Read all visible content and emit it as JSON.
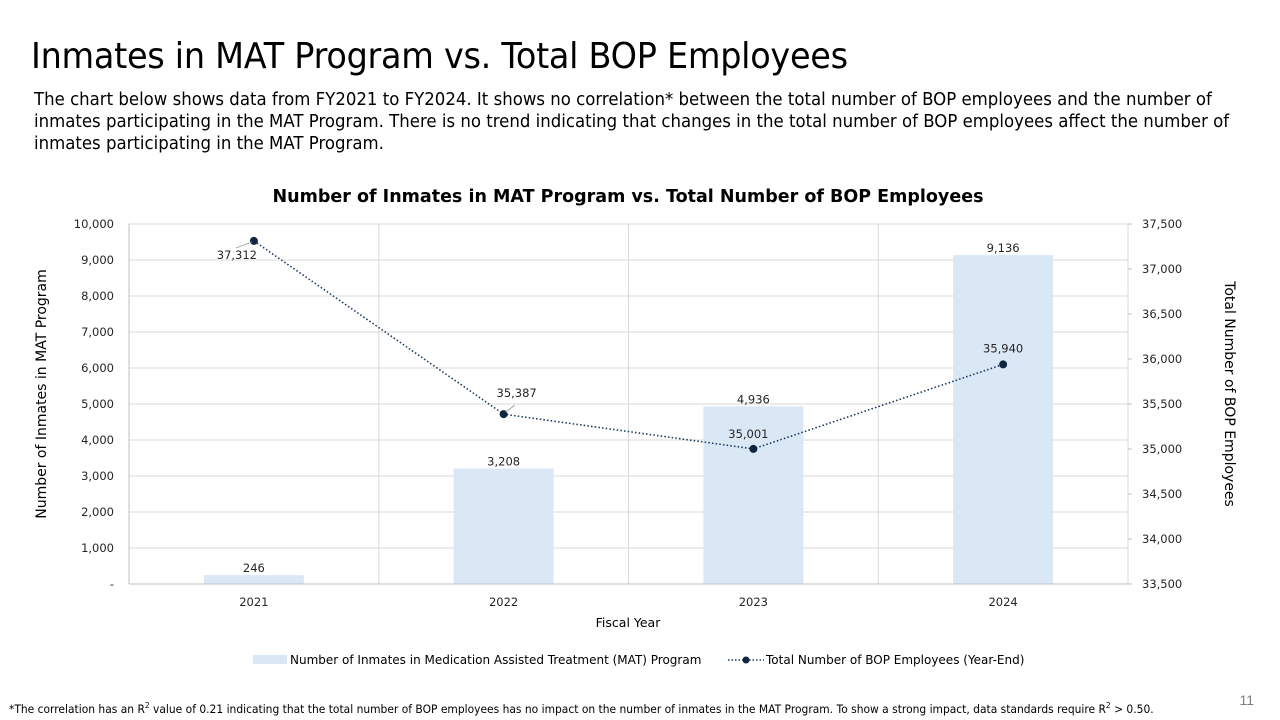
{
  "slide": {
    "title": "Inmates in MAT Program vs. Total BOP Employees",
    "intro": "The chart below shows data from FY2021 to FY2024. It shows no correlation* between the total number of BOP employees and the number of inmates participating in the MAT Program. There is no trend indicating that changes in the total number of BOP employees affect the number of inmates participating in the MAT Program.",
    "footnote_part1": "*The correlation has an R",
    "footnote_sup1": "2",
    "footnote_part2": " value of 0.21 indicating that the total number of BOP employees has no impact on the number of inmates in the MAT Program. To show a strong impact, data standards require R",
    "footnote_sup2": "2",
    "footnote_part3": " > 0.50.",
    "page_number": "11"
  },
  "chart_data": {
    "type": "bar",
    "title": "Number of Inmates in MAT Program vs. Total Number of BOP Employees",
    "xlabel": "Fiscal Year",
    "ylabel": "Number of Inmates in MAT Program",
    "y2label": "Total Number of BOP Employees",
    "categories": [
      "2021",
      "2022",
      "2023",
      "2024"
    ],
    "ylim": [
      0,
      10000
    ],
    "y_ticks": [
      0,
      1000,
      2000,
      3000,
      4000,
      5000,
      6000,
      7000,
      8000,
      9000,
      10000
    ],
    "y_tick_labels": [
      "-",
      "1,000",
      "2,000",
      "3,000",
      "4,000",
      "5,000",
      "6,000",
      "7,000",
      "8,000",
      "9,000",
      "10,000"
    ],
    "y2lim": [
      33500,
      37500
    ],
    "y2_ticks": [
      33500,
      34000,
      34500,
      35000,
      35500,
      36000,
      36500,
      37000,
      37500
    ],
    "y2_tick_labels": [
      "33,500",
      "34,000",
      "34,500",
      "35,000",
      "35,500",
      "36,000",
      "36,500",
      "37,000",
      "37,500"
    ],
    "grid": true,
    "legend_position": "bottom",
    "series": [
      {
        "name": "Number of Inmates in Medication Assisted Treatment (MAT) Program",
        "type": "bar",
        "axis": "left",
        "color": "#dae7f5",
        "values": [
          246,
          3208,
          4936,
          9136
        ],
        "labels": [
          "246",
          "3,208",
          "4,936",
          "9,136"
        ]
      },
      {
        "name": "Total Number of BOP Employees (Year-End)",
        "type": "line",
        "style": "dotted",
        "axis": "right",
        "color": "#1b3a5e",
        "values": [
          37312,
          35387,
          35001,
          35940
        ],
        "labels": [
          "37,312",
          "35,387",
          "35,001",
          "35,940"
        ]
      }
    ]
  }
}
